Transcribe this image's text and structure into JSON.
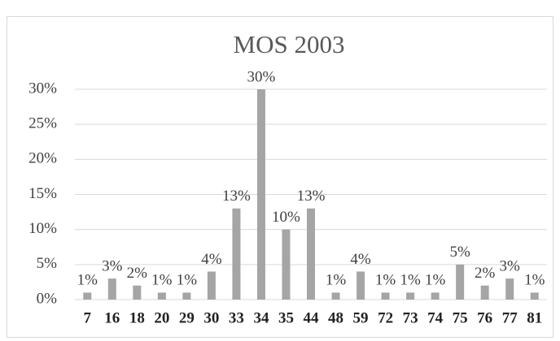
{
  "chart_data": {
    "type": "bar",
    "title": "MOS 2003",
    "categories": [
      "7",
      "16",
      "18",
      "20",
      "29",
      "30",
      "33",
      "34",
      "35",
      "44",
      "48",
      "59",
      "72",
      "73",
      "74",
      "75",
      "76",
      "77",
      "81"
    ],
    "values": [
      1,
      3,
      2,
      1,
      1,
      4,
      13,
      30,
      10,
      13,
      1,
      4,
      1,
      1,
      1,
      5,
      2,
      3,
      1
    ],
    "value_labels": [
      "1%",
      "3%",
      "2%",
      "1%",
      "1%",
      "4%",
      "13%",
      "30%",
      "10%",
      "13%",
      "1%",
      "4%",
      "1%",
      "1%",
      "1%",
      "5%",
      "2%",
      "3%",
      "1%"
    ],
    "color": "#a5a5a5",
    "ylim": [
      0,
      30
    ],
    "yticks": [
      {
        "value": 0,
        "label": "0%"
      },
      {
        "value": 5,
        "label": "5%"
      },
      {
        "value": 10,
        "label": "10%"
      },
      {
        "value": 15,
        "label": "15%"
      },
      {
        "value": 20,
        "label": "20%"
      },
      {
        "value": 25,
        "label": "25%"
      },
      {
        "value": 30,
        "label": "30%"
      }
    ],
    "grid": true
  }
}
